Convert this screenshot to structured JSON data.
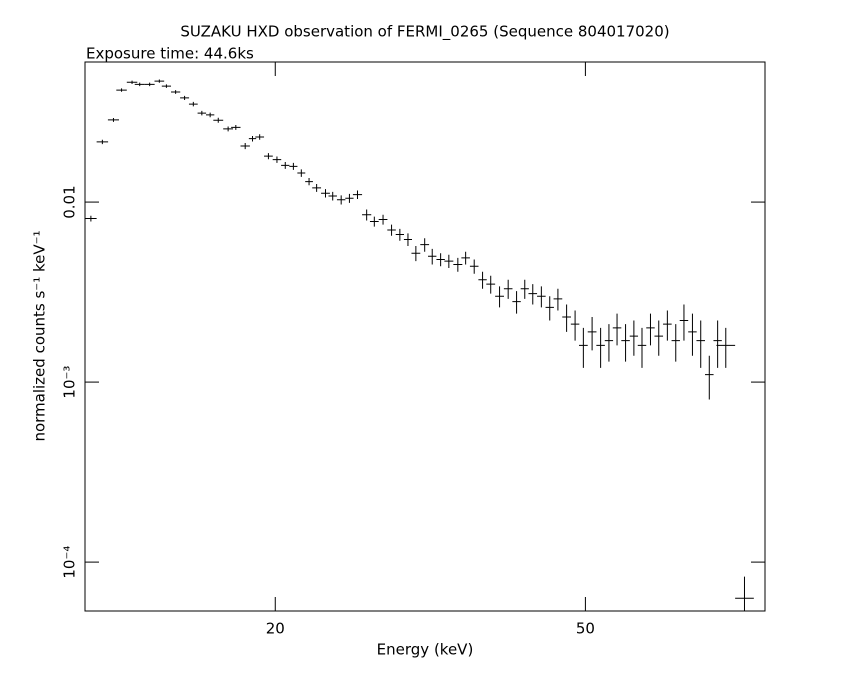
{
  "chart_data": {
    "type": "scatter",
    "title": "SUZAKU HXD observation of FERMI_0265 (Sequence 804017020)",
    "subtitle": "Exposure time: 44.6ks",
    "x_label": "Energy (keV)",
    "y_label": "normalized counts s⁻¹ keV⁻¹",
    "xlog": true,
    "ylog": true,
    "xlim": [
      11.4,
      85
    ],
    "ylim": [
      5.35e-05,
      0.06
    ],
    "xticks": [
      20,
      50
    ],
    "yticks": [
      {
        "value": 0.0001,
        "label": "10⁻⁴"
      },
      {
        "value": 0.001,
        "label": "10⁻³"
      },
      0.01
    ],
    "series": [
      {
        "color": "#000000",
        "x": [
          11.6,
          12.0,
          12.4,
          12.7,
          13.1,
          13.4,
          13.8,
          14.2,
          14.5,
          14.9,
          15.3,
          15.7,
          16.1,
          16.5,
          16.9,
          17.4,
          17.8,
          18.3,
          18.7,
          19.1,
          19.6,
          20.1,
          20.6,
          21.1,
          21.6,
          22.1,
          22.6,
          23.2,
          23.7,
          24.3,
          24.9,
          25.5,
          26.2,
          26.8,
          27.5,
          28.2,
          28.9,
          29.6,
          30.3,
          31.1,
          31.8,
          32.6,
          33.4,
          34.3,
          35.1,
          36.0,
          36.9,
          37.8,
          38.8,
          39.8,
          40.8,
          41.8,
          42.8,
          43.9,
          45.0,
          46.1,
          47.3,
          48.5,
          49.7,
          51.0,
          52.3,
          53.6,
          54.9,
          56.3,
          57.7,
          59.1,
          60.6,
          62.1,
          63.7,
          65.3,
          66.9,
          68.6,
          70.3,
          72.1,
          73.9,
          75.7,
          80
        ],
        "values": [
          0.0081,
          0.0216,
          0.0286,
          0.0419,
          0.0463,
          0.0451,
          0.0451,
          0.047,
          0.0441,
          0.0409,
          0.0379,
          0.035,
          0.0312,
          0.0305,
          0.0285,
          0.0255,
          0.026,
          0.0205,
          0.0225,
          0.023,
          0.018,
          0.0172,
          0.016,
          0.0158,
          0.0145,
          0.013,
          0.012,
          0.0112,
          0.0108,
          0.0103,
          0.0105,
          0.011,
          0.0085,
          0.0078,
          0.008,
          0.007,
          0.0066,
          0.0062,
          0.0052,
          0.0058,
          0.005,
          0.0048,
          0.0047,
          0.0045,
          0.0049,
          0.0044,
          0.0037,
          0.0035,
          0.003,
          0.0033,
          0.0028,
          0.0033,
          0.0031,
          0.003,
          0.0026,
          0.0029,
          0.0023,
          0.0021,
          0.0016,
          0.0019,
          0.0016,
          0.0017,
          0.002,
          0.0017,
          0.0018,
          0.0016,
          0.002,
          0.0018,
          0.0021,
          0.0017,
          0.0022,
          0.0019,
          0.0017,
          0.0011,
          0.0017,
          0.0016,
          6.3e-05
        ],
        "errors": [
          0.0003,
          0.0006,
          0.0007,
          0.0009,
          0.001,
          0.001,
          0.001,
          0.001,
          0.001,
          0.001,
          0.001,
          0.001,
          0.0009,
          0.0009,
          0.0009,
          0.0008,
          0.0008,
          0.0008,
          0.0008,
          0.0008,
          0.0007,
          0.0007,
          0.0007,
          0.0007,
          0.0007,
          0.0006,
          0.0006,
          0.0006,
          0.0006,
          0.0006,
          0.0006,
          0.0006,
          0.0006,
          0.0005,
          0.0005,
          0.0005,
          0.0005,
          0.0005,
          0.0005,
          0.0005,
          0.0005,
          0.0004,
          0.0004,
          0.0004,
          0.0004,
          0.0004,
          0.0004,
          0.0004,
          0.0004,
          0.0004,
          0.0004,
          0.0004,
          0.0004,
          0.0004,
          0.0004,
          0.0004,
          0.0004,
          0.0004,
          0.0004,
          0.0004,
          0.0004,
          0.0004,
          0.0004,
          0.0004,
          0.0004,
          0.0004,
          0.0004,
          0.0004,
          0.0004,
          0.0004,
          0.0005,
          0.0005,
          0.0005,
          0.0003,
          0.0005,
          0.0004,
          2e-05
        ]
      }
    ]
  }
}
